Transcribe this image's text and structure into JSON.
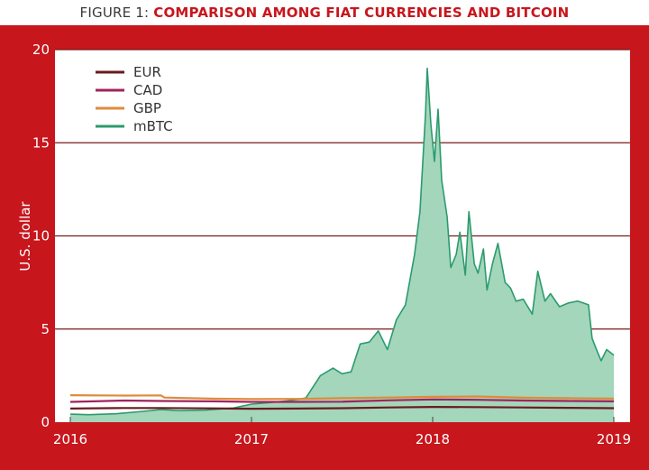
{
  "figure": {
    "prefix": "FIGURE 1: ",
    "title": "COMPARISON AMONG FIAT CURRENCIES AND BITCOIN"
  },
  "chart_data": {
    "type": "area",
    "title": "COMPARISON AMONG FIAT CURRENCIES AND BITCOIN",
    "ylabel": "U.S. dollar",
    "xlabel": "",
    "ylim": [
      0,
      20
    ],
    "xlim": [
      2016,
      2019
    ],
    "yticks": [
      "0",
      "5",
      "10",
      "15",
      "20"
    ],
    "xticks": [
      "2016",
      "2017",
      "2018",
      "2019"
    ],
    "grid": "horizontal",
    "legend_position": "top-left",
    "colors": {
      "EUR": "#6b1a1e",
      "CAD": "#a0245a",
      "GBP": "#e08a3c",
      "mBTC": "#2b9b6e",
      "mBTC_fill": "#a3d6bb",
      "frame": "#c8161d",
      "gridline": "#7a1a1a"
    },
    "series": [
      {
        "name": "EUR",
        "x": [
          2016.0,
          2016.3,
          2016.5,
          2016.8,
          2017.0,
          2017.25,
          2017.5,
          2017.75,
          2018.0,
          2018.25,
          2018.5,
          2018.75,
          2019.0
        ],
        "values": [
          0.73,
          0.76,
          0.76,
          0.74,
          0.72,
          0.73,
          0.75,
          0.79,
          0.82,
          0.81,
          0.79,
          0.77,
          0.75
        ]
      },
      {
        "name": "CAD",
        "x": [
          2016.0,
          2016.3,
          2016.5,
          2016.8,
          2017.0,
          2017.25,
          2017.5,
          2017.75,
          2018.0,
          2018.25,
          2018.5,
          2018.75,
          2019.0
        ],
        "values": [
          1.09,
          1.16,
          1.14,
          1.12,
          1.09,
          1.09,
          1.1,
          1.17,
          1.22,
          1.2,
          1.16,
          1.14,
          1.12
        ]
      },
      {
        "name": "GBP",
        "x": [
          2016.0,
          2016.3,
          2016.5,
          2016.52,
          2016.8,
          2017.0,
          2017.25,
          2017.5,
          2017.75,
          2018.0,
          2018.25,
          2018.5,
          2018.75,
          2019.0
        ],
        "values": [
          1.45,
          1.43,
          1.44,
          1.32,
          1.26,
          1.24,
          1.25,
          1.29,
          1.32,
          1.36,
          1.38,
          1.31,
          1.29,
          1.27
        ]
      },
      {
        "name": "mBTC",
        "x": [
          2016.0,
          2016.1,
          2016.25,
          2016.4,
          2016.5,
          2016.6,
          2016.75,
          2016.9,
          2017.0,
          2017.1,
          2017.2,
          2017.3,
          2017.38,
          2017.45,
          2017.5,
          2017.55,
          2017.6,
          2017.65,
          2017.7,
          2017.75,
          2017.8,
          2017.85,
          2017.9,
          2017.93,
          2017.96,
          2017.97,
          2017.99,
          2018.01,
          2018.03,
          2018.05,
          2018.08,
          2018.1,
          2018.13,
          2018.15,
          2018.18,
          2018.2,
          2018.23,
          2018.25,
          2018.28,
          2018.3,
          2018.33,
          2018.36,
          2018.4,
          2018.43,
          2018.46,
          2018.5,
          2018.55,
          2018.58,
          2018.62,
          2018.65,
          2018.7,
          2018.75,
          2018.8,
          2018.83,
          2018.86,
          2018.88,
          2018.9,
          2018.93,
          2018.96,
          2019.0
        ],
        "values": [
          0.43,
          0.4,
          0.45,
          0.58,
          0.68,
          0.62,
          0.65,
          0.76,
          0.97,
          1.05,
          1.15,
          1.3,
          2.5,
          2.9,
          2.6,
          2.7,
          4.2,
          4.3,
          4.9,
          3.9,
          5.5,
          6.3,
          9.0,
          11.3,
          16.5,
          19.0,
          16.0,
          14.0,
          16.8,
          13.0,
          11.0,
          8.3,
          9.0,
          10.2,
          7.9,
          11.3,
          8.5,
          8.0,
          9.3,
          7.1,
          8.5,
          9.6,
          7.5,
          7.2,
          6.5,
          6.6,
          5.8,
          8.1,
          6.5,
          6.9,
          6.2,
          6.4,
          6.5,
          6.4,
          6.3,
          4.5,
          4.0,
          3.3,
          3.9,
          3.6
        ]
      }
    ]
  }
}
